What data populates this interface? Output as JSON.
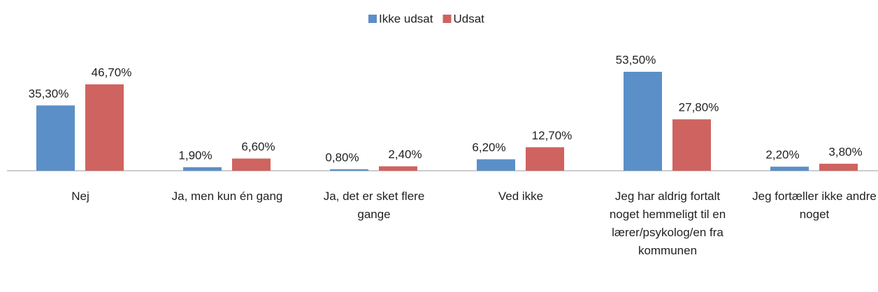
{
  "chart_data": {
    "type": "bar",
    "categories": [
      "Nej",
      "Ja, men kun én gang",
      "Ja, det er sket flere gange",
      "Ved ikke",
      "Jeg har aldrig fortalt noget hemmeligt til en lærer/psykolog/en fra kommunen",
      "Jeg fortæller ikke andre noget"
    ],
    "series": [
      {
        "name": "Ikke udsat",
        "color": "#5b8fc8",
        "values": [
          35.3,
          1.9,
          0.8,
          6.2,
          53.5,
          2.2
        ],
        "value_labels": [
          "35,30%",
          "1,90%",
          "0,80%",
          "6,20%",
          "53,50%",
          "2,20%"
        ]
      },
      {
        "name": "Udsat",
        "color": "#cf635f",
        "values": [
          46.7,
          6.6,
          2.4,
          12.7,
          27.8,
          3.8
        ],
        "value_labels": [
          "46,70%",
          "6,60%",
          "2,40%",
          "12,70%",
          "27,80%",
          "3,80%"
        ]
      }
    ],
    "legend": "top"
  }
}
